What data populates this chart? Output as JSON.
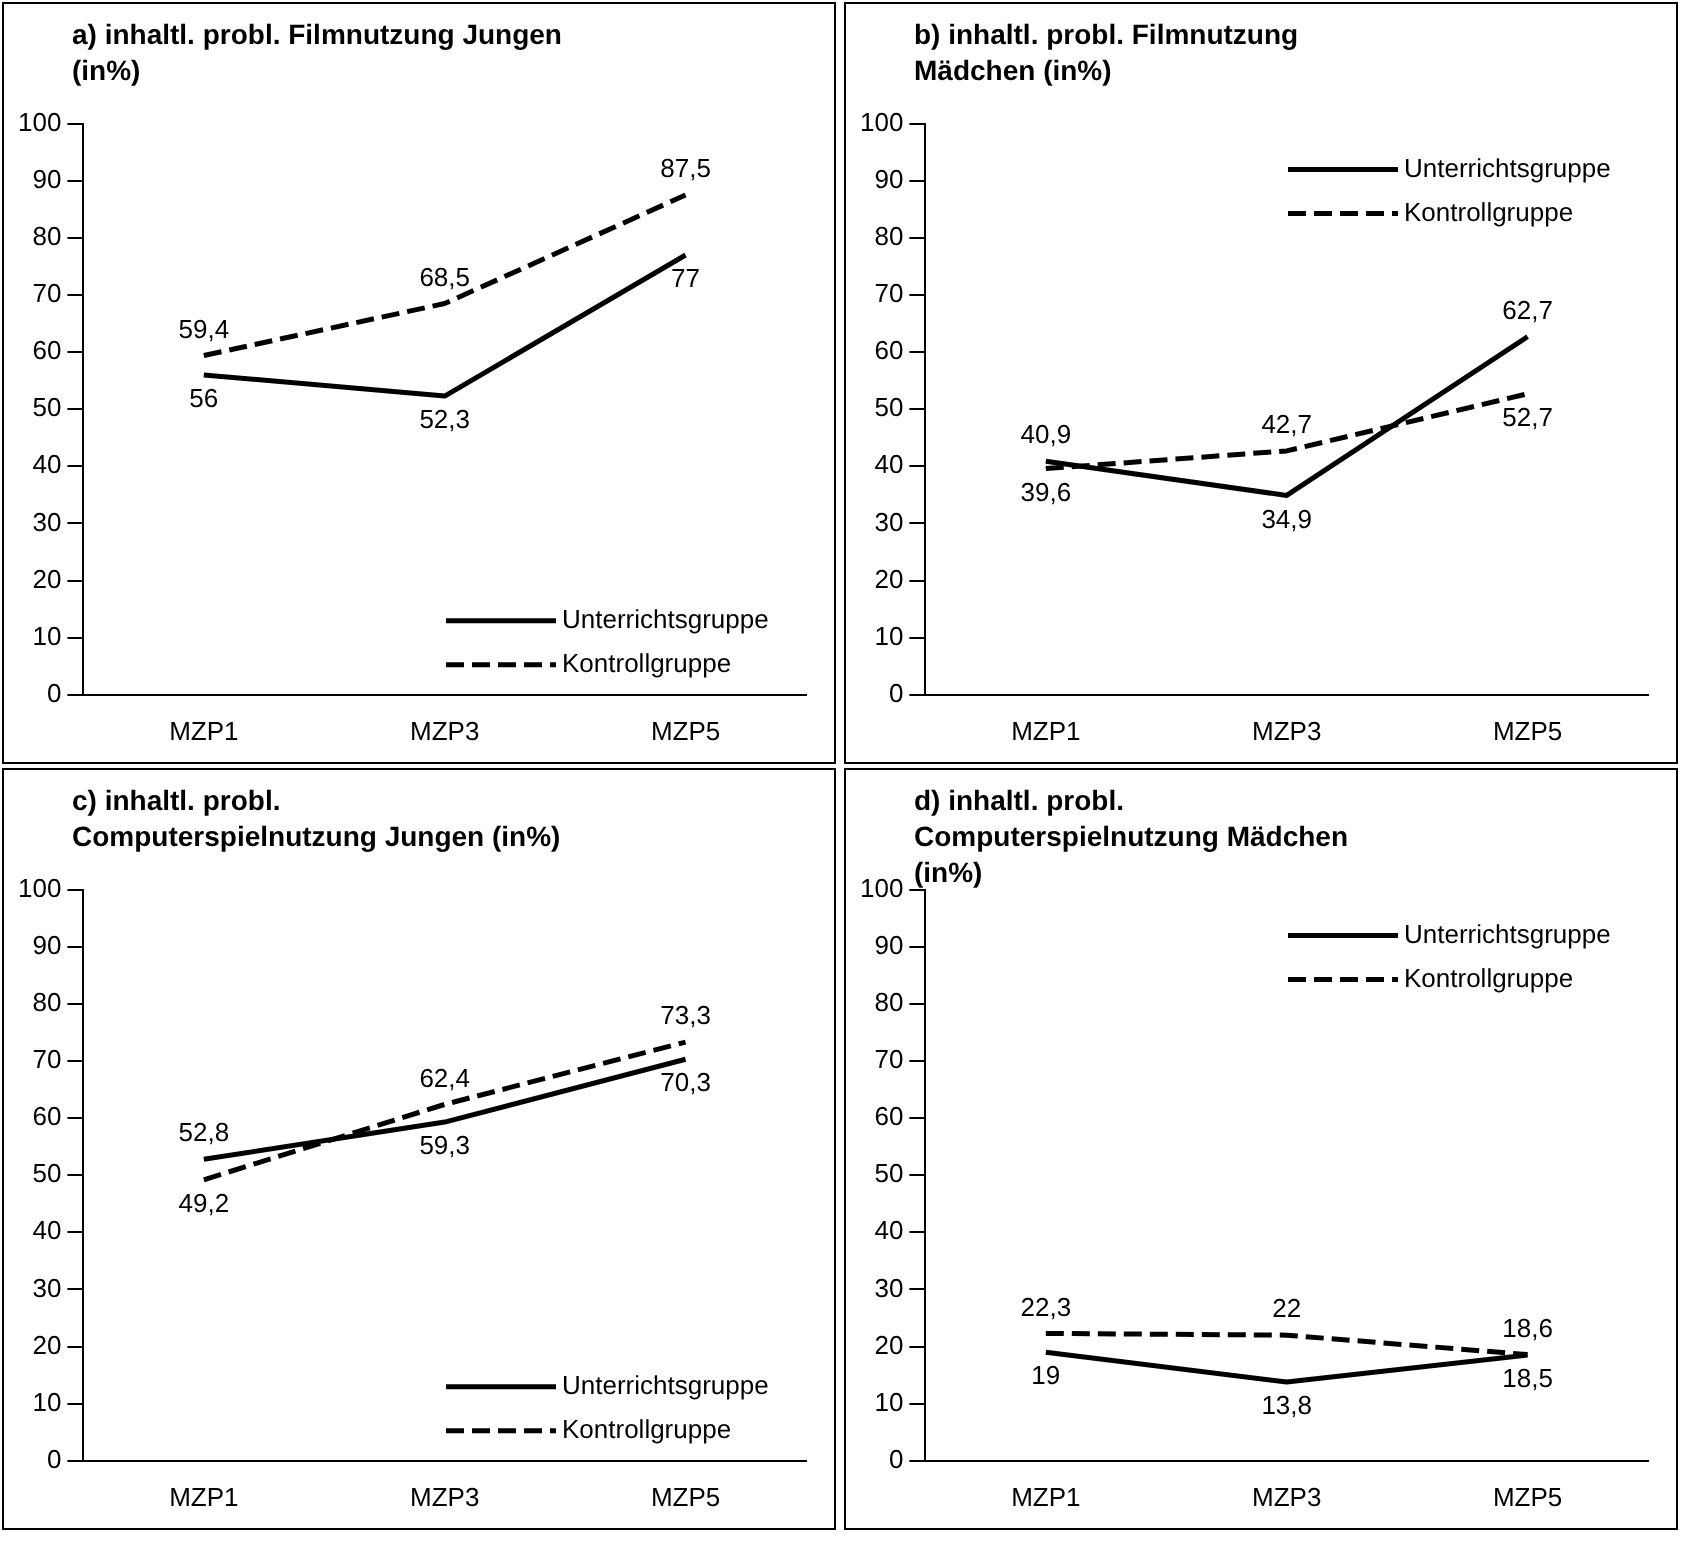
{
  "chart_data": [
    {
      "type": "line",
      "title": "a) inhaltl. probl. Filmnutzung Jungen (in%)",
      "categories": [
        "MZP1",
        "MZP3",
        "MZP5"
      ],
      "series": [
        {
          "name": "Unterrichtsgruppe",
          "color": "#000000",
          "line_style": "solid",
          "values": [
            56,
            52.3,
            77
          ],
          "value_labels": [
            "56",
            "52,3",
            "77"
          ]
        },
        {
          "name": "Kontrollgruppe",
          "color": "#000000",
          "line_style": "dashed",
          "values": [
            59.4,
            68.5,
            87.5
          ],
          "value_labels": [
            "59,4",
            "68,5",
            "87,5"
          ]
        }
      ],
      "ylim": [
        0,
        100
      ],
      "yticks": [
        0,
        10,
        20,
        30,
        40,
        50,
        60,
        70,
        80,
        90,
        100
      ],
      "grid": false,
      "legend": "bottom right",
      "marker": "none"
    },
    {
      "type": "line",
      "title": "b) inhaltl. probl. Filmnutzung Mädchen (in%)",
      "categories": [
        "MZP1",
        "MZP3",
        "MZP5"
      ],
      "series": [
        {
          "name": "Unterrichtsgruppe",
          "color": "#000000",
          "line_style": "solid",
          "values": [
            40.9,
            34.9,
            62.7
          ],
          "value_labels": [
            "40,9",
            "34,9",
            "62,7"
          ]
        },
        {
          "name": "Kontrollgruppe",
          "color": "#000000",
          "line_style": "dashed",
          "values": [
            39.6,
            42.7,
            52.7
          ],
          "value_labels": [
            "39,6",
            "42,7",
            "52,7"
          ]
        }
      ],
      "ylim": [
        0,
        100
      ],
      "yticks": [
        0,
        10,
        20,
        30,
        40,
        50,
        60,
        70,
        80,
        90,
        100
      ],
      "grid": false,
      "legend": "top right",
      "marker": "none"
    },
    {
      "type": "line",
      "title": "c) inhaltl. probl. Computerspielnutzung Jungen (in%)",
      "categories": [
        "MZP1",
        "MZP3",
        "MZP5"
      ],
      "series": [
        {
          "name": "Unterrichtsgruppe",
          "color": "#000000",
          "line_style": "solid",
          "values": [
            52.8,
            59.3,
            70.3
          ],
          "value_labels": [
            "52,8",
            "59,3",
            "70,3"
          ]
        },
        {
          "name": "Kontrollgruppe",
          "color": "#000000",
          "line_style": "dashed",
          "values": [
            49.2,
            62.4,
            73.3
          ],
          "value_labels": [
            "49,2",
            "62,4",
            "73,3"
          ]
        }
      ],
      "ylim": [
        0,
        100
      ],
      "yticks": [
        0,
        10,
        20,
        30,
        40,
        50,
        60,
        70,
        80,
        90,
        100
      ],
      "grid": false,
      "legend": "bottom right",
      "marker": "none"
    },
    {
      "type": "line",
      "title": "d) inhaltl. probl. Computerspielnutzung Mädchen (in%)",
      "categories": [
        "MZP1",
        "MZP3",
        "MZP5"
      ],
      "series": [
        {
          "name": "Unterrichtsgruppe",
          "color": "#000000",
          "line_style": "solid",
          "values": [
            19,
            13.8,
            18.5
          ],
          "value_labels": [
            "19",
            "13,8",
            "18,5"
          ]
        },
        {
          "name": "Kontrollgruppe",
          "color": "#000000",
          "line_style": "dashed",
          "values": [
            22.3,
            22,
            18.6
          ],
          "value_labels": [
            "22,3",
            "22",
            "18,6"
          ]
        }
      ],
      "ylim": [
        0,
        100
      ],
      "yticks": [
        0,
        10,
        20,
        30,
        40,
        50,
        60,
        70,
        80,
        90,
        100
      ],
      "grid": false,
      "legend": "top right",
      "marker": "none"
    }
  ]
}
